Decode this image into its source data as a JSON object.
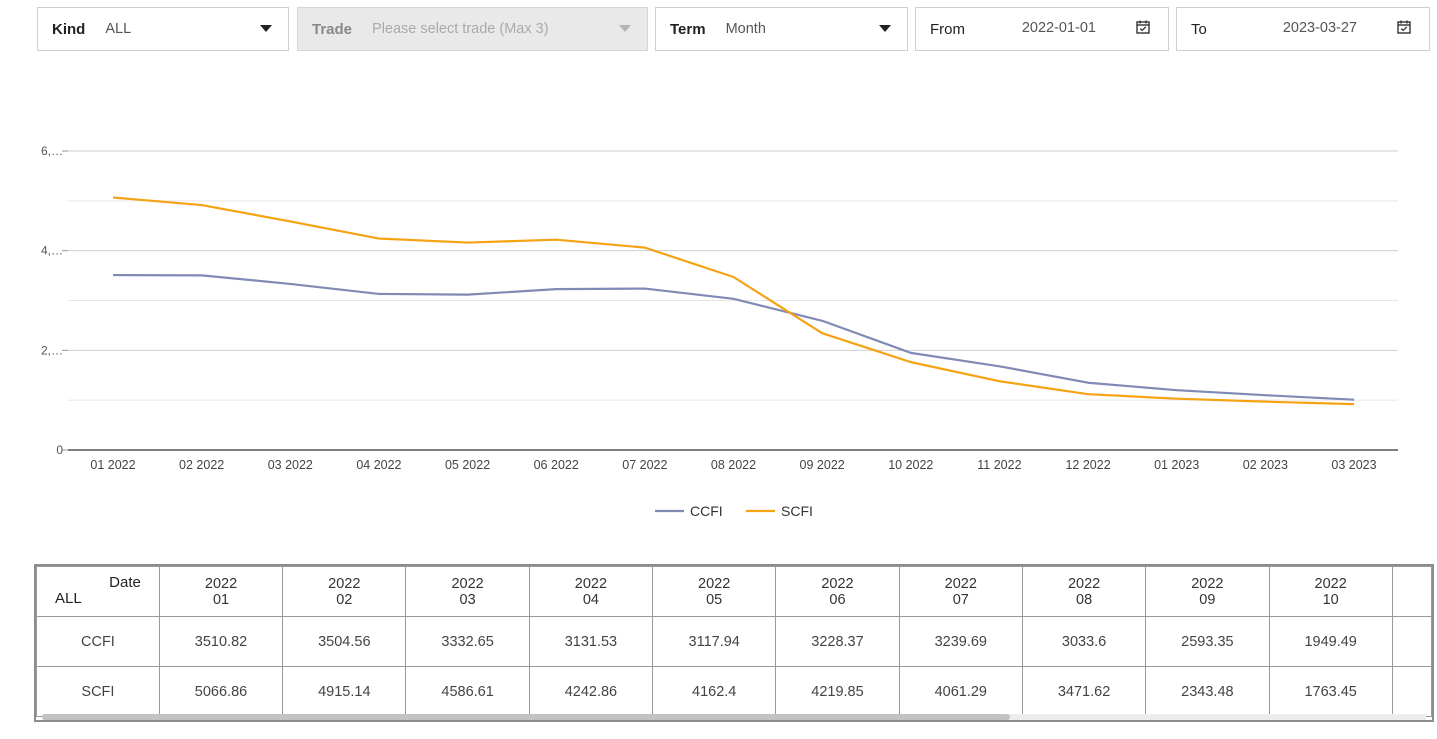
{
  "filters": {
    "kind": {
      "label": "Kind",
      "value": "ALL"
    },
    "trade": {
      "label": "Trade",
      "placeholder": "Please select trade (Max 3)"
    },
    "term": {
      "label": "Term",
      "value": "Month"
    },
    "from": {
      "label": "From",
      "value": "2022-01-01"
    },
    "to": {
      "label": "To",
      "value": "2023-03-27"
    }
  },
  "colors": {
    "ccfi": "#7f8ab5",
    "scfi": "#f5a312",
    "grid": "#d4d4d4"
  },
  "chart_data": {
    "type": "line",
    "categories": [
      "01 2022",
      "02 2022",
      "03 2022",
      "04 2022",
      "05 2022",
      "06 2022",
      "07 2022",
      "08 2022",
      "09 2022",
      "10 2022",
      "11 2022",
      "12 2022",
      "01 2023",
      "02 2023",
      "03 2023"
    ],
    "series": [
      {
        "name": "CCFI",
        "values": [
          3510.82,
          3504.56,
          3332.65,
          3131.53,
          3117.94,
          3228.37,
          3239.69,
          3033.6,
          2593.35,
          1949.49,
          1680,
          1350,
          1200,
          1100,
          1010
        ]
      },
      {
        "name": "SCFI",
        "values": [
          5066.86,
          4915.14,
          4586.61,
          4242.86,
          4162.4,
          4219.85,
          4061.29,
          3471.62,
          2343.48,
          1763.45,
          1380,
          1120,
          1030,
          970,
          920
        ]
      }
    ],
    "y_tick_labels": [
      "0",
      "2,…",
      "4,…",
      "6,…"
    ],
    "y_ticks": [
      0,
      2000,
      4000,
      6000
    ],
    "ylim": [
      0,
      6000
    ],
    "grid": true,
    "legend": "bottom-center"
  },
  "table": {
    "corner_top": "Date",
    "corner_bottom": "ALL",
    "columns": [
      {
        "year": "2022",
        "month": "01"
      },
      {
        "year": "2022",
        "month": "02"
      },
      {
        "year": "2022",
        "month": "03"
      },
      {
        "year": "2022",
        "month": "04"
      },
      {
        "year": "2022",
        "month": "05"
      },
      {
        "year": "2022",
        "month": "06"
      },
      {
        "year": "2022",
        "month": "07"
      },
      {
        "year": "2022",
        "month": "08"
      },
      {
        "year": "2022",
        "month": "09"
      },
      {
        "year": "2022",
        "month": "10"
      }
    ],
    "rows": [
      {
        "name": "CCFI",
        "values": [
          "3510.82",
          "3504.56",
          "3332.65",
          "3131.53",
          "3117.94",
          "3228.37",
          "3239.69",
          "3033.6",
          "2593.35",
          "1949.49"
        ]
      },
      {
        "name": "SCFI",
        "values": [
          "5066.86",
          "4915.14",
          "4586.61",
          "4242.86",
          "4162.4",
          "4219.85",
          "4061.29",
          "3471.62",
          "2343.48",
          "1763.45"
        ]
      }
    ]
  }
}
